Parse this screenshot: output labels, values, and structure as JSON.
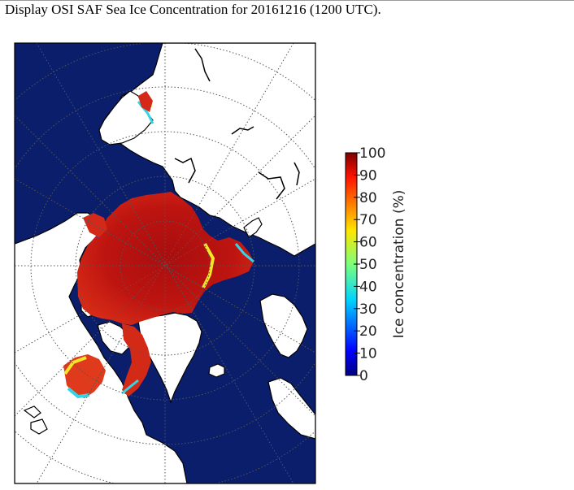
{
  "caption": "Display OSI SAF Sea Ice Concentration for 20161216 (1200 UTC).",
  "colorbar": {
    "label": "Ice concentration (%)",
    "ticks": [
      {
        "value": 0,
        "label": "0"
      },
      {
        "value": 10,
        "label": "10"
      },
      {
        "value": 20,
        "label": "20"
      },
      {
        "value": 30,
        "label": "30"
      },
      {
        "value": 40,
        "label": "40"
      },
      {
        "value": 50,
        "label": "50"
      },
      {
        "value": 60,
        "label": "60"
      },
      {
        "value": 70,
        "label": "70"
      },
      {
        "value": 80,
        "label": "80"
      },
      {
        "value": 90,
        "label": "90"
      },
      {
        "value": 100,
        "label": "100"
      }
    ],
    "range": [
      0,
      100
    ],
    "colormap": "jet"
  },
  "colors": {
    "ocean": "#0a1e6b",
    "land": "#ffffff",
    "ice_high": "#b30d0d",
    "ice_mid": "#e8321a",
    "ice_edge_yellow": "#f2e52a",
    "ice_edge_cyan": "#32d6e8",
    "ice_edge_blue": "#1a5ae6",
    "grid": "#555555"
  }
}
